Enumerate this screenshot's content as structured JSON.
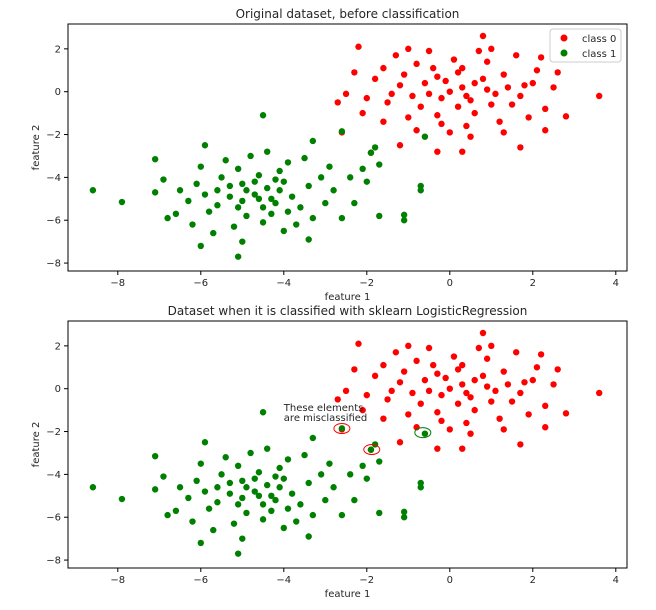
{
  "chart_data": [
    {
      "type": "scatter",
      "title": "Original dataset, before classification",
      "xlabel": "feature 1",
      "ylabel": "feature 2",
      "xlim": [
        -9.2,
        4.27
      ],
      "ylim": [
        -8.37,
        3.16
      ],
      "xticks": [
        -8,
        -6,
        -4,
        -2,
        0,
        2,
        4
      ],
      "yticks": [
        -8,
        -6,
        -4,
        -2,
        0,
        2
      ],
      "grid": false,
      "legend": "top-right",
      "series": [
        {
          "name": "class 0",
          "color": "#ff0000",
          "points": [
            [
              0,
              0
            ],
            [
              0.3,
              0.2
            ],
            [
              -0.2,
              -0.3
            ],
            [
              0.5,
              -0.4
            ],
            [
              -0.6,
              0.4
            ],
            [
              0.8,
              0.6
            ],
            [
              -0.9,
              -0.2
            ],
            [
              0.2,
              0.9
            ],
            [
              -0.4,
              1.1
            ],
            [
              1.1,
              -0.1
            ],
            [
              1.3,
              0.8
            ],
            [
              -1.2,
              0.3
            ],
            [
              0.6,
              -1.0
            ],
            [
              -0.3,
              -1.1
            ],
            [
              1.5,
              -0.6
            ],
            [
              -1.5,
              -0.5
            ],
            [
              0.1,
              1.5
            ],
            [
              0.9,
              1.4
            ],
            [
              -0.8,
              1.3
            ],
            [
              1.8,
              0.3
            ],
            [
              -1.8,
              0.6
            ],
            [
              0.4,
              -1.6
            ],
            [
              -1.0,
              -1.2
            ],
            [
              1.2,
              -1.4
            ],
            [
              2.1,
              1.0
            ],
            [
              -2.0,
              -0.3
            ],
            [
              0.0,
              -1.9
            ],
            [
              1.6,
              1.7
            ],
            [
              -1.3,
              1.7
            ],
            [
              2.3,
              -0.8
            ],
            [
              -0.5,
              1.9
            ],
            [
              0.7,
              1.9
            ],
            [
              -2.3,
              0.9
            ],
            [
              1.9,
              -1.2
            ],
            [
              -0.1,
              0.5
            ],
            [
              0.4,
              -0.2
            ],
            [
              -0.7,
              -0.7
            ],
            [
              0.9,
              0.1
            ],
            [
              -0.3,
              0.7
            ],
            [
              0.2,
              -0.7
            ],
            [
              1.0,
              -0.6
            ],
            [
              -1.1,
              0.8
            ],
            [
              0.6,
              0.4
            ],
            [
              -0.5,
              -0.1
            ],
            [
              1.4,
              0.2
            ],
            [
              -1.4,
              -0.1
            ],
            [
              0.3,
              1.1
            ],
            [
              -0.2,
              -1.5
            ],
            [
              2.0,
              0.4
            ],
            [
              -1.6,
              1.1
            ],
            [
              1.7,
              -0.2
            ],
            [
              2.5,
              0.2
            ],
            [
              -2.5,
              -0.1
            ],
            [
              2.2,
              1.6
            ],
            [
              1.0,
              2.0
            ],
            [
              -1.0,
              2.0
            ],
            [
              0.8,
              2.6
            ],
            [
              -2.2,
              2.1
            ],
            [
              3.6,
              -0.2
            ],
            [
              2.8,
              -1.15
            ],
            [
              -2.7,
              -0.5
            ],
            [
              -2.6,
              -1.9
            ],
            [
              -1.9,
              -2.85
            ],
            [
              -1.2,
              -2.5
            ],
            [
              -0.3,
              -2.8
            ],
            [
              0.3,
              -2.8
            ],
            [
              1.7,
              -2.6
            ],
            [
              2.3,
              -1.8
            ],
            [
              0.5,
              -2.1
            ],
            [
              -0.8,
              -1.8
            ],
            [
              -1.6,
              -1.4
            ],
            [
              2.6,
              0.9
            ],
            [
              -2.1,
              -1.0
            ],
            [
              1.3,
              -1.9
            ]
          ]
        },
        {
          "name": "class 1",
          "color": "#008000",
          "points": [
            [
              -4.7,
              -4.8
            ],
            [
              -4.4,
              -4.5
            ],
            [
              -5.0,
              -5.1
            ],
            [
              -4.2,
              -5.2
            ],
            [
              -5.3,
              -4.4
            ],
            [
              -4.0,
              -4.2
            ],
            [
              -5.6,
              -5.3
            ],
            [
              -4.6,
              -3.9
            ],
            [
              -4.9,
              -5.8
            ],
            [
              -3.8,
              -4.9
            ],
            [
              -5.5,
              -4.0
            ],
            [
              -4.3,
              -5.7
            ],
            [
              -5.9,
              -4.8
            ],
            [
              -3.6,
              -5.4
            ],
            [
              -5.1,
              -3.6
            ],
            [
              -4.1,
              -3.7
            ],
            [
              -5.8,
              -5.6
            ],
            [
              -3.4,
              -4.4
            ],
            [
              -6.1,
              -4.3
            ],
            [
              -4.5,
              -6.1
            ],
            [
              -5.2,
              -6.3
            ],
            [
              -3.3,
              -5.9
            ],
            [
              -6.3,
              -5.1
            ],
            [
              -3.9,
              -3.3
            ],
            [
              -5.4,
              -3.2
            ],
            [
              -4.8,
              -3.0
            ],
            [
              -3.1,
              -4.0
            ],
            [
              -6.5,
              -4.6
            ],
            [
              -4.0,
              -6.5
            ],
            [
              -5.7,
              -6.6
            ],
            [
              -3.0,
              -5.2
            ],
            [
              -6.0,
              -3.5
            ],
            [
              -4.4,
              -2.8
            ],
            [
              -3.5,
              -3.1
            ],
            [
              -5.0,
              -7.0
            ],
            [
              -2.8,
              -4.6
            ],
            [
              -6.6,
              -5.7
            ],
            [
              -3.7,
              -6.2
            ],
            [
              -2.9,
              -3.5
            ],
            [
              -6.2,
              -6.2
            ],
            [
              -4.7,
              -4.2
            ],
            [
              -4.9,
              -4.6
            ],
            [
              -4.3,
              -5.0
            ],
            [
              -5.1,
              -5.4
            ],
            [
              -4.5,
              -5.4
            ],
            [
              -5.3,
              -4.9
            ],
            [
              -4.1,
              -4.6
            ],
            [
              -5.6,
              -4.6
            ],
            [
              -3.9,
              -5.6
            ],
            [
              -4.6,
              -5.0
            ],
            [
              -5.0,
              -4.3
            ],
            [
              -4.2,
              -4.1
            ],
            [
              -3.3,
              -2.3
            ],
            [
              -5.9,
              -2.5
            ],
            [
              -2.6,
              -5.9
            ],
            [
              -6.0,
              -7.2
            ],
            [
              -5.1,
              -7.7
            ],
            [
              -3.4,
              -6.9
            ],
            [
              -2.4,
              -4.0
            ],
            [
              -2.3,
              -5.2
            ],
            [
              -8.6,
              -4.6
            ],
            [
              -7.9,
              -5.15
            ],
            [
              -7.1,
              -3.15
            ],
            [
              -7.1,
              -4.7
            ],
            [
              -4.5,
              -1.1
            ],
            [
              -0.7,
              -4.4
            ],
            [
              -0.7,
              -4.6
            ],
            [
              -1.1,
              -5.75
            ],
            [
              -1.1,
              -6.0
            ],
            [
              -1.7,
              -5.8
            ],
            [
              -1.7,
              -3.4
            ],
            [
              -1.8,
              -2.6
            ],
            [
              -0.6,
              -2.1
            ],
            [
              -2.6,
              -1.85
            ],
            [
              -1.9,
              -2.85
            ],
            [
              -2.0,
              -4.2
            ],
            [
              -6.8,
              -5.9
            ],
            [
              -6.9,
              -4.1
            ],
            [
              -2.1,
              -3.6
            ]
          ]
        }
      ]
    },
    {
      "type": "scatter",
      "title": "Dataset when it is classified with sklearn LogisticRegression",
      "xlabel": "feature 1",
      "ylabel": "feature 2",
      "xlim": [
        -9.2,
        4.27
      ],
      "ylim": [
        -8.37,
        3.16
      ],
      "xticks": [
        -8,
        -6,
        -4,
        -2,
        0,
        2,
        4
      ],
      "yticks": [
        -8,
        -6,
        -4,
        -2,
        0,
        2
      ],
      "grid": false,
      "annotation": {
        "line1": "These elements",
        "line2": "are misclassified",
        "x": -4,
        "y": -0.9
      },
      "misclassified": [
        {
          "x": -2.6,
          "y": -1.86,
          "color": "#ff0000"
        },
        {
          "x": -1.88,
          "y": -2.84,
          "color": "#ff0000"
        },
        {
          "x": -0.65,
          "y": -2.05,
          "color": "#008000"
        }
      ],
      "same_points_as": "top"
    }
  ]
}
